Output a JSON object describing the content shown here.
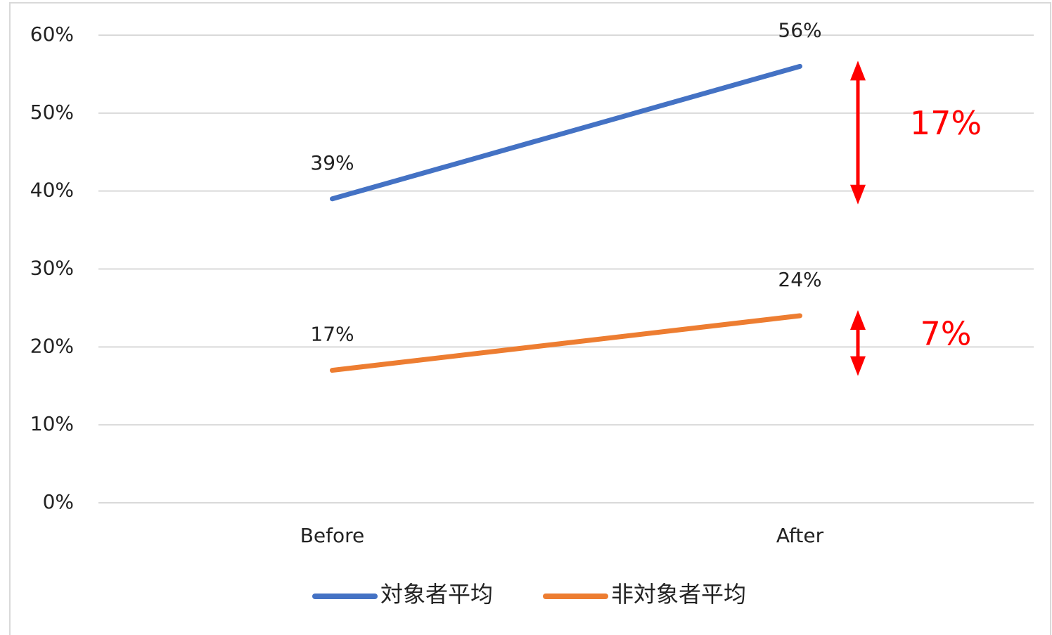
{
  "chart_data": {
    "type": "line",
    "categories": [
      "Before",
      "After"
    ],
    "series": [
      {
        "name": "対象者平均",
        "color": "#4472c4",
        "values": [
          39,
          56
        ],
        "value_labels": [
          "39%",
          "56%"
        ]
      },
      {
        "name": "非対象者平均",
        "color": "#ed7d31",
        "values": [
          17,
          24
        ],
        "value_labels": [
          "17%",
          "24%"
        ]
      }
    ],
    "ylim": [
      0,
      60
    ],
    "yticks": [
      {
        "value": 0,
        "label": "0%"
      },
      {
        "value": 10,
        "label": "10%"
      },
      {
        "value": 20,
        "label": "20%"
      },
      {
        "value": 30,
        "label": "30%"
      },
      {
        "value": 40,
        "label": "40%"
      },
      {
        "value": 50,
        "label": "50%"
      },
      {
        "value": 60,
        "label": "60%"
      }
    ],
    "grid": true,
    "legend": "bottom",
    "annotations": [
      {
        "text": "17%",
        "color": "#ff0000"
      },
      {
        "text": "7%",
        "color": "#ff0000"
      }
    ]
  }
}
